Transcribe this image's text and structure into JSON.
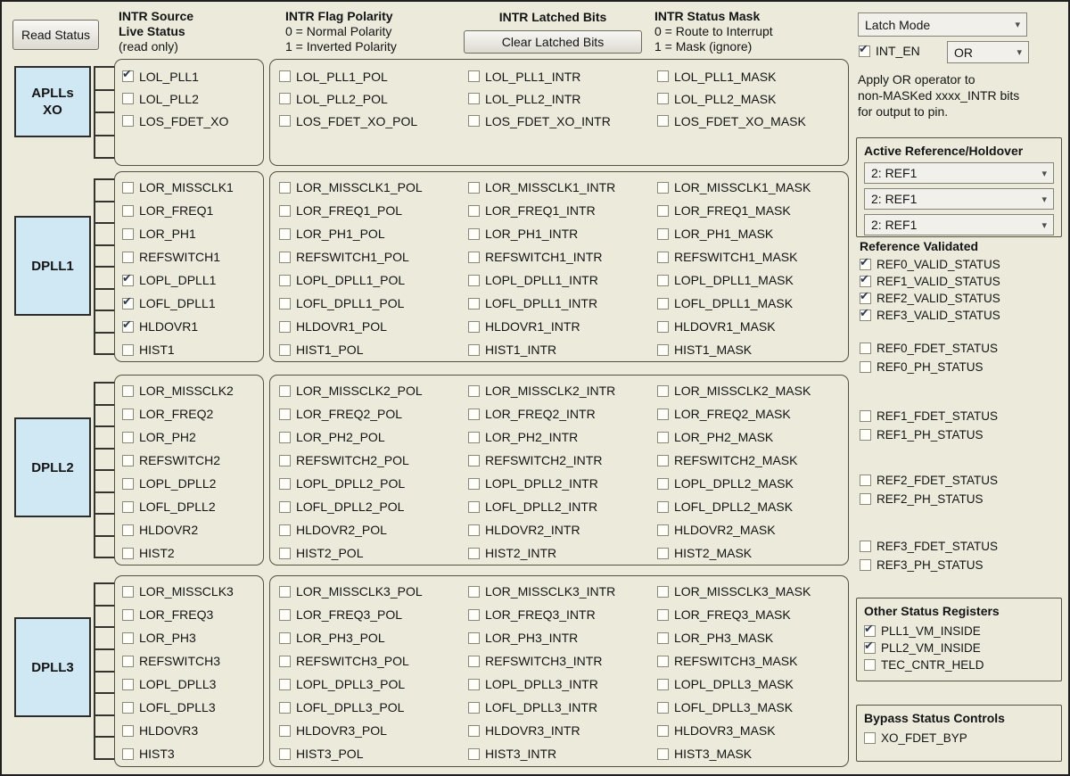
{
  "colors": {
    "background": "#eceadb",
    "block_fill": "#cfe8f3",
    "check_color": "#2c3a55"
  },
  "icons": {
    "chevron_down": "▾"
  },
  "buttons": {
    "read_status": "Read Status",
    "clear_latched": "Clear Latched Bits"
  },
  "column_headers": {
    "source": [
      "INTR Source",
      "Live Status",
      "(read only)"
    ],
    "polarity": [
      "INTR Flag Polarity",
      "0 = Normal Polarity",
      "1 = Inverted Polarity"
    ],
    "latched": [
      "INTR Latched Bits"
    ],
    "mask": [
      "INTR Status Mask",
      "0 = Route to Interrupt",
      "1 = Mask (ignore)"
    ]
  },
  "suffixes": {
    "pol": "_POL",
    "intr": "_INTR",
    "mask": "_MASK"
  },
  "blocks": [
    {
      "label": "APLLs XO"
    },
    {
      "label": "DPLL1"
    },
    {
      "label": "DPLL2"
    },
    {
      "label": "DPLL3"
    }
  ],
  "groups": [
    {
      "block": "APLLs XO",
      "rows": [
        {
          "name": "LOL_PLL1",
          "live": true
        },
        {
          "name": "LOL_PLL2",
          "live": false
        },
        {
          "name": "LOS_FDET_XO",
          "live": false
        }
      ]
    },
    {
      "block": "DPLL1",
      "rows": [
        {
          "name": "LOR_MISSCLK1",
          "live": false
        },
        {
          "name": "LOR_FREQ1",
          "live": false
        },
        {
          "name": "LOR_PH1",
          "live": false
        },
        {
          "name": "REFSWITCH1",
          "live": false
        },
        {
          "name": "LOPL_DPLL1",
          "live": true
        },
        {
          "name": "LOFL_DPLL1",
          "live": true
        },
        {
          "name": "HLDOVR1",
          "live": true
        },
        {
          "name": "HIST1",
          "live": false
        }
      ]
    },
    {
      "block": "DPLL2",
      "rows": [
        {
          "name": "LOR_MISSCLK2",
          "live": false
        },
        {
          "name": "LOR_FREQ2",
          "live": false
        },
        {
          "name": "LOR_PH2",
          "live": false
        },
        {
          "name": "REFSWITCH2",
          "live": false
        },
        {
          "name": "LOPL_DPLL2",
          "live": false
        },
        {
          "name": "LOFL_DPLL2",
          "live": false
        },
        {
          "name": "HLDOVR2",
          "live": false
        },
        {
          "name": "HIST2",
          "live": false
        }
      ]
    },
    {
      "block": "DPLL3",
      "rows": [
        {
          "name": "LOR_MISSCLK3",
          "live": false
        },
        {
          "name": "LOR_FREQ3",
          "live": false
        },
        {
          "name": "LOR_PH3",
          "live": false
        },
        {
          "name": "REFSWITCH3",
          "live": false
        },
        {
          "name": "LOPL_DPLL3",
          "live": false
        },
        {
          "name": "LOFL_DPLL3",
          "live": false
        },
        {
          "name": "HLDOVR3",
          "live": false
        },
        {
          "name": "HIST3",
          "live": false
        }
      ]
    }
  ],
  "right_panel": {
    "latch_mode_value": "Latch Mode",
    "int_en": {
      "label": "INT_EN",
      "checked": true
    },
    "or_value": "OR",
    "note": "Apply OR operator to\nnon-MASKed xxxx_INTR bits\nfor output to pin.",
    "active_reference": {
      "title": "Active Reference/Holdover",
      "selects": [
        "2: REF1",
        "2: REF1",
        "2: REF1"
      ]
    },
    "reference_validated": {
      "title": "Reference Validated",
      "items": [
        {
          "label": "REF0_VALID_STATUS",
          "checked": true
        },
        {
          "label": "REF1_VALID_STATUS",
          "checked": true
        },
        {
          "label": "REF2_VALID_STATUS",
          "checked": true
        },
        {
          "label": "REF3_VALID_STATUS",
          "checked": true
        }
      ]
    },
    "ref_pairs": [
      [
        "REF0_FDET_STATUS",
        "REF0_PH_STATUS"
      ],
      [
        "REF1_FDET_STATUS",
        "REF1_PH_STATUS"
      ],
      [
        "REF2_FDET_STATUS",
        "REF2_PH_STATUS"
      ],
      [
        "REF3_FDET_STATUS",
        "REF3_PH_STATUS"
      ]
    ],
    "other_status": {
      "title": "Other Status Registers",
      "items": [
        {
          "label": "PLL1_VM_INSIDE",
          "checked": true
        },
        {
          "label": "PLL2_VM_INSIDE",
          "checked": true
        },
        {
          "label": "TEC_CNTR_HELD",
          "checked": false
        }
      ]
    },
    "bypass": {
      "title": "Bypass Status Controls",
      "items": [
        {
          "label": "XO_FDET_BYP",
          "checked": false
        }
      ]
    }
  }
}
